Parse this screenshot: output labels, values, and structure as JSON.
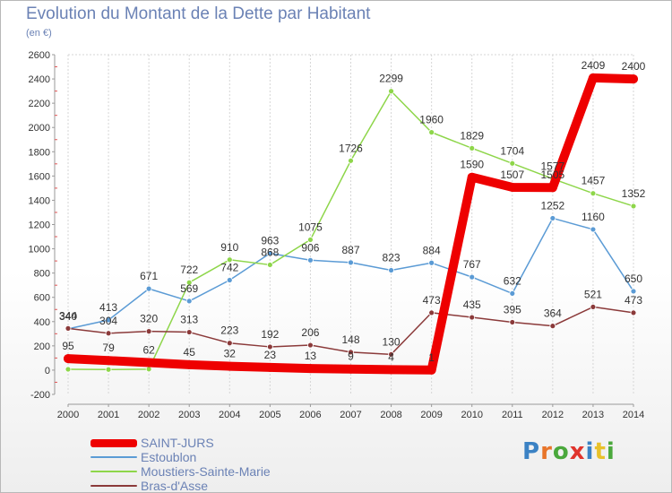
{
  "header": {
    "title": "Evolution du Montant de la Dette par Habitant",
    "subtitle": "(en €)"
  },
  "logo": {
    "text": "Proxiti",
    "letter_colors": [
      "#3b82c4",
      "#e8752a",
      "#4aa83c",
      "#e0342c",
      "#3b82c4",
      "#e8c12a",
      "#4aa83c"
    ]
  },
  "chart_data": {
    "type": "line",
    "title": "Evolution du Montant de la Dette par Habitant",
    "ylabel": "(en €)",
    "xlabel": "",
    "x": [
      "2000",
      "2001",
      "2002",
      "2003",
      "2004",
      "2005",
      "2006",
      "2007",
      "2008",
      "2009",
      "2010",
      "2011",
      "2012",
      "2013",
      "2014"
    ],
    "ylim": [
      -200,
      2600
    ],
    "yticks": [
      "-200",
      "0",
      "200",
      "400",
      "600",
      "800",
      "1000",
      "1200",
      "1400",
      "1600",
      "1800",
      "2000",
      "2200",
      "2400",
      "2600"
    ],
    "grid": "vertical",
    "legend_position": "bottom-left",
    "series": [
      {
        "name": "SAINT-JURS",
        "color": "#ee0000",
        "values": [
          95,
          79,
          62,
          45,
          32,
          23,
          13,
          9,
          4,
          1,
          1590,
          1507,
          1505,
          2409,
          2400
        ],
        "labels": [
          "95",
          "79",
          "62",
          "45",
          "32",
          "23",
          "13",
          "9",
          "4",
          "1",
          "1590",
          "1507",
          "1505",
          "2409",
          "2400"
        ]
      },
      {
        "name": "Estoublon",
        "color": "#5b9bd5",
        "values": [
          340,
          413,
          671,
          569,
          742,
          963,
          906,
          887,
          823,
          884,
          767,
          632,
          1252,
          1160,
          650
        ],
        "labels": [
          "340",
          "413",
          "671",
          "569",
          "742",
          "963",
          "906",
          "887",
          "823",
          "884",
          "767",
          "632",
          "1252",
          "1160",
          "650"
        ]
      },
      {
        "name": "Moustiers-Sainte-Marie",
        "color": "#8ed64a",
        "values": [
          7,
          5,
          8,
          722,
          910,
          868,
          1075,
          1726,
          2299,
          1960,
          1829,
          1704,
          1577,
          1457,
          1352
        ],
        "labels": [
          "",
          "",
          "",
          "722",
          "910",
          "868",
          "1075",
          "1726",
          "2299",
          "1960",
          "1829",
          "1704",
          "1577",
          "1457",
          "1352"
        ]
      },
      {
        "name": "Bras-d'Asse",
        "color": "#8b3a3a",
        "values": [
          344,
          304,
          320,
          313,
          223,
          192,
          206,
          148,
          130,
          473,
          435,
          395,
          364,
          521,
          473
        ],
        "labels": [
          "344",
          "304",
          "320",
          "313",
          "223",
          "192",
          "206",
          "148",
          "130",
          "473",
          "435",
          "395",
          "364",
          "521",
          "473"
        ]
      }
    ]
  }
}
